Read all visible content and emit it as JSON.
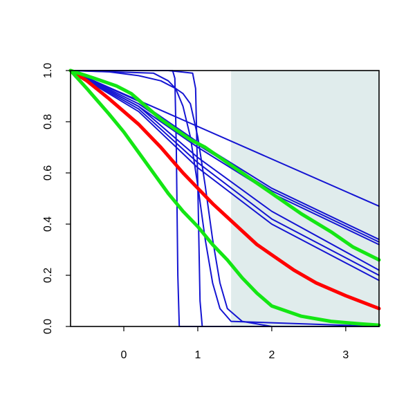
{
  "chart_data": {
    "type": "line",
    "title": "",
    "xlabel": "",
    "ylabel": "",
    "xlim": [
      -0.72,
      3.45
    ],
    "ylim": [
      0.0,
      1.0
    ],
    "x_ticks": [
      0,
      1,
      2,
      3
    ],
    "x_tick_labels": [
      "0",
      "1",
      "2",
      "3"
    ],
    "y_ticks": [
      0.0,
      0.2,
      0.4,
      0.6,
      0.8,
      1.0
    ],
    "y_tick_labels": [
      "0.0",
      "0.2",
      "0.4",
      "0.6",
      "0.8",
      "1.0"
    ],
    "grid": false,
    "legend": "none",
    "shaded_region": {
      "x_start": 1.45,
      "x_end": 3.45,
      "color": "#e0ecec"
    },
    "colors": {
      "blue": "#1414d2",
      "red": "#ff0000",
      "green": "#14e614"
    },
    "series": [
      {
        "color": "#1414d2",
        "width": 2,
        "x": [
          -0.72,
          0.66,
          0.69,
          0.71,
          0.73,
          0.75,
          3.45
        ],
        "y": [
          1.0,
          1.0,
          0.97,
          0.7,
          0.2,
          0.0,
          0.0
        ]
      },
      {
        "color": "#1414d2",
        "width": 2,
        "x": [
          -0.72,
          0.6,
          0.93,
          0.97,
          1.0,
          1.03,
          1.06,
          3.45
        ],
        "y": [
          1.0,
          1.0,
          0.99,
          0.93,
          0.55,
          0.1,
          0.0,
          0.0
        ]
      },
      {
        "color": "#1414d2",
        "width": 2,
        "x": [
          -0.72,
          0.4,
          0.6,
          0.7,
          0.8,
          0.9,
          1.0,
          1.1,
          1.2,
          1.3,
          1.45,
          3.45
        ],
        "y": [
          1.0,
          0.99,
          0.96,
          0.93,
          0.86,
          0.74,
          0.55,
          0.34,
          0.17,
          0.07,
          0.02,
          0.0
        ]
      },
      {
        "color": "#1414d2",
        "width": 2,
        "x": [
          -0.72,
          -0.2,
          0.2,
          0.5,
          0.7,
          0.8,
          0.9,
          1.0,
          1.1,
          1.2,
          1.3,
          1.4,
          1.6,
          2.0,
          3.45
        ],
        "y": [
          1.0,
          0.995,
          0.98,
          0.96,
          0.93,
          0.91,
          0.87,
          0.74,
          0.55,
          0.34,
          0.17,
          0.07,
          0.02,
          0.0,
          0.0
        ]
      },
      {
        "color": "#1414d2",
        "width": 2,
        "x": [
          -0.72,
          3.45
        ],
        "y": [
          1.0,
          0.47
        ]
      },
      {
        "color": "#1414d2",
        "width": 2,
        "x": [
          -0.72,
          0.2,
          1.0,
          2.0,
          3.45
        ],
        "y": [
          1.0,
          0.88,
          0.72,
          0.54,
          0.34
        ]
      },
      {
        "color": "#1414d2",
        "width": 2,
        "x": [
          -0.72,
          0.2,
          1.0,
          2.0,
          3.45
        ],
        "y": [
          1.0,
          0.87,
          0.71,
          0.53,
          0.33
        ]
      },
      {
        "color": "#1414d2",
        "width": 2,
        "x": [
          -0.72,
          0.2,
          1.0,
          2.0,
          3.45
        ],
        "y": [
          1.0,
          0.86,
          0.7,
          0.52,
          0.32
        ]
      },
      {
        "color": "#1414d2",
        "width": 2,
        "x": [
          -0.72,
          0.2,
          1.0,
          2.0,
          3.45
        ],
        "y": [
          1.0,
          0.86,
          0.66,
          0.45,
          0.22
        ]
      },
      {
        "color": "#1414d2",
        "width": 2,
        "x": [
          -0.72,
          0.2,
          1.0,
          2.0,
          3.45
        ],
        "y": [
          1.0,
          0.85,
          0.64,
          0.42,
          0.2
        ]
      },
      {
        "color": "#1414d2",
        "width": 2,
        "x": [
          -0.72,
          0.2,
          1.0,
          2.0,
          3.45
        ],
        "y": [
          1.0,
          0.84,
          0.62,
          0.4,
          0.18
        ]
      },
      {
        "color": "#ff0000",
        "width": 5,
        "x": [
          -0.72,
          -0.5,
          -0.2,
          0.0,
          0.2,
          0.5,
          0.8,
          1.0,
          1.2,
          1.5,
          1.8,
          2.0,
          2.3,
          2.6,
          3.0,
          3.45
        ],
        "y": [
          1.0,
          0.96,
          0.89,
          0.84,
          0.79,
          0.7,
          0.6,
          0.54,
          0.48,
          0.4,
          0.32,
          0.28,
          0.22,
          0.17,
          0.12,
          0.07
        ]
      },
      {
        "color": "#14e614",
        "width": 5,
        "x": [
          -0.72,
          -0.5,
          -0.2,
          0.0,
          0.2,
          0.4,
          0.6,
          0.8,
          1.0,
          1.2,
          1.4,
          1.6,
          1.8,
          2.0,
          2.4,
          2.8,
          3.2,
          3.45
        ],
        "y": [
          1.0,
          0.93,
          0.83,
          0.76,
          0.68,
          0.6,
          0.52,
          0.45,
          0.39,
          0.32,
          0.26,
          0.19,
          0.13,
          0.08,
          0.04,
          0.02,
          0.01,
          0.005
        ]
      },
      {
        "color": "#14e614",
        "width": 5,
        "x": [
          -0.72,
          -0.4,
          -0.1,
          0.1,
          0.3,
          0.5,
          0.7,
          0.9,
          1.1,
          1.3,
          1.5,
          1.8,
          2.1,
          2.4,
          2.8,
          3.1,
          3.45
        ],
        "y": [
          1.0,
          0.97,
          0.94,
          0.91,
          0.86,
          0.81,
          0.77,
          0.73,
          0.7,
          0.66,
          0.62,
          0.56,
          0.5,
          0.44,
          0.37,
          0.31,
          0.26
        ]
      }
    ]
  }
}
